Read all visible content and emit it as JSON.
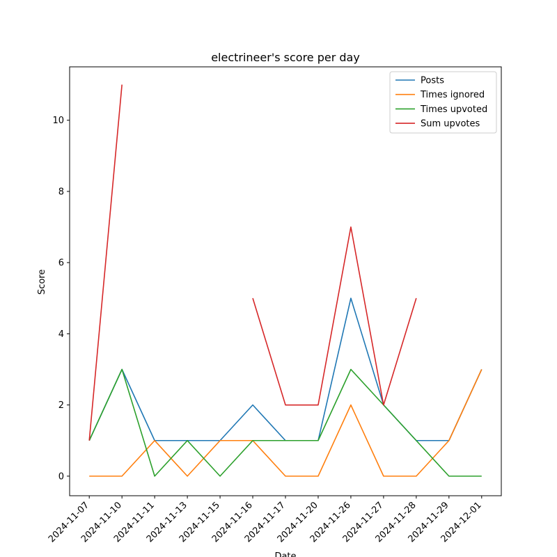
{
  "chart_data": {
    "type": "line",
    "title": "electrineer's score per day",
    "xlabel": "Date",
    "ylabel": "Score",
    "categories": [
      "2024-11-07",
      "2024-11-10",
      "2024-11-11",
      "2024-11-13",
      "2024-11-15",
      "2024-11-16",
      "2024-11-17",
      "2024-11-20",
      "2024-11-26",
      "2024-11-27",
      "2024-11-28",
      "2024-11-29",
      "2024-12-01"
    ],
    "ylim": [
      -0.55,
      11.5
    ],
    "yticks": [
      0,
      2,
      4,
      6,
      8,
      10
    ],
    "grid": false,
    "legend_position": "top-right",
    "series": [
      {
        "name": "Posts",
        "color": "#1f77b4",
        "values": [
          1,
          3,
          1,
          1,
          1,
          2,
          1,
          1,
          5,
          2,
          1,
          1,
          3
        ]
      },
      {
        "name": "Times ignored",
        "color": "#ff7f0e",
        "values": [
          0,
          0,
          1,
          0,
          1,
          1,
          0,
          0,
          2,
          0,
          0,
          1,
          3
        ]
      },
      {
        "name": "Times upvoted",
        "color": "#2ca02c",
        "values": [
          1,
          3,
          0,
          1,
          0,
          1,
          1,
          1,
          3,
          2,
          1,
          0,
          0
        ]
      },
      {
        "name": "Sum upvotes",
        "color": "#d62728",
        "values": [
          1,
          11,
          null,
          null,
          null,
          5,
          2,
          2,
          7,
          2,
          5,
          null,
          null
        ]
      }
    ]
  }
}
